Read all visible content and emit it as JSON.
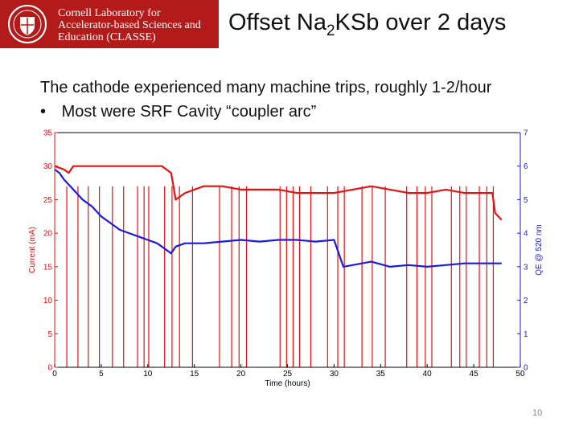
{
  "header": {
    "org_line1": "Cornell Laboratory for",
    "org_line2": "Accelerator-based Sciences and",
    "org_line3": "Education (CLASSE)",
    "title_pre": "Offset Na",
    "title_sub": "2",
    "title_post": "KSb over 2 days"
  },
  "body": {
    "line1": "The cathode experienced many machine trips, roughly 1-2/hour",
    "bullet_glyph": "•",
    "bullet1": "Most were SRF Cavity “coupler arc”"
  },
  "page_number": "10",
  "colors": {
    "brand": "#b31b1b",
    "current": "#e81010",
    "qe": "#1a1ae0"
  },
  "chart_data": {
    "type": "line",
    "xlabel": "Time (hours)",
    "ylabel_left": "Current (mA)",
    "ylabel_right": "QE @ 520 nm",
    "xlim": [
      0,
      50
    ],
    "ylim_left": [
      0,
      35
    ],
    "ylim_right": [
      0,
      7
    ],
    "x_ticks": [
      "0",
      "5",
      "10",
      "15",
      "20",
      "25",
      "30",
      "35",
      "40",
      "45",
      "50"
    ],
    "y_left_ticks": [
      "0",
      "5",
      "10",
      "15",
      "20",
      "25",
      "30",
      "35"
    ],
    "y_right_ticks": [
      "0",
      "1",
      "2",
      "3",
      "4",
      "5",
      "6",
      "7"
    ],
    "series": [
      {
        "axis": "left",
        "color": "#e81010",
        "x": [
          0,
          1.0,
          1.5,
          2.0,
          3.0,
          5.0,
          7.0,
          9.0,
          10.0,
          11.5,
          12.5,
          13.0,
          14.0,
          15.0,
          16.0,
          18.0,
          20.0,
          22.0,
          24.0,
          26.0,
          28.0,
          30.0,
          32.0,
          34.0,
          36.0,
          38.0,
          40.0,
          42.0,
          44.0,
          46.0,
          47.0,
          47.3,
          48.0
        ],
        "y": [
          30,
          29.5,
          29,
          30,
          30,
          30,
          30,
          30,
          30,
          30,
          29,
          25,
          26,
          26.5,
          27,
          27,
          26.5,
          26.5,
          26.5,
          26,
          26,
          26,
          26.5,
          27,
          26.5,
          26,
          26,
          26.5,
          26,
          26,
          26,
          23,
          22
        ]
      },
      {
        "axis": "right",
        "color": "#1a1ae0",
        "x": [
          0,
          0.5,
          1.0,
          2.0,
          3.0,
          4.0,
          5.0,
          6.0,
          7.0,
          8.0,
          9.0,
          10.0,
          11.0,
          11.5,
          12.5,
          13.0,
          14.0,
          16.0,
          18.0,
          20.0,
          22.0,
          24.0,
          26.0,
          28.0,
          30.0,
          31.0,
          32.0,
          34.0,
          36.0,
          38.0,
          40.0,
          42.0,
          44.0,
          46.0,
          47.0,
          48.0
        ],
        "y": [
          5.9,
          5.8,
          5.6,
          5.3,
          5.0,
          4.8,
          4.5,
          4.3,
          4.1,
          4.0,
          3.9,
          3.8,
          3.7,
          3.6,
          3.4,
          3.6,
          3.7,
          3.7,
          3.75,
          3.8,
          3.75,
          3.8,
          3.8,
          3.75,
          3.8,
          3.0,
          3.05,
          3.15,
          3.0,
          3.05,
          3.0,
          3.05,
          3.1,
          3.1,
          3.1,
          3.1
        ]
      }
    ],
    "trips": [
      1.3,
      2.5,
      3.6,
      4.8,
      6.2,
      7.4,
      8.9,
      9.6,
      10.1,
      11.8,
      12.6,
      13.4,
      14.8,
      17.7,
      19.0,
      19.8,
      20.6,
      24.2,
      24.9,
      25.6,
      26.3,
      27.5,
      29.3,
      30.4,
      31.1,
      33.0,
      34.1,
      35.5,
      37.8,
      38.9,
      39.8,
      40.5,
      42.6,
      43.5,
      44.2,
      45.6,
      46.4,
      47.1
    ]
  }
}
